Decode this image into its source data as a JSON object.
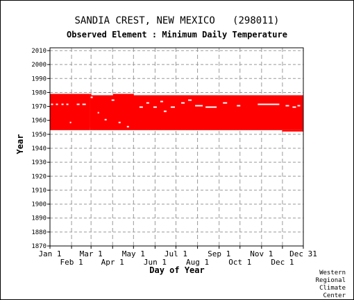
{
  "header": {
    "station": "SANDIA CREST, NEW MEXICO   (298011)",
    "element": "Observed Element : Minimum Daily Temperature"
  },
  "credit": [
    "Western",
    "Regional",
    "Climate",
    "Center"
  ],
  "chart_data": {
    "type": "heatmap",
    "title": "SANDIA CREST, NEW MEXICO   (298011)",
    "subtitle": "Observed Element : Minimum Daily Temperature",
    "xlabel": "Day of Year",
    "ylabel": "Year",
    "x_ticks_upper": [
      {
        "label": "Jan 1",
        "day": 1
      },
      {
        "label": "Mar 1",
        "day": 60
      },
      {
        "label": "May 1",
        "day": 121
      },
      {
        "label": "Jul 1",
        "day": 182
      },
      {
        "label": "Sep 1",
        "day": 244
      },
      {
        "label": "Nov 1",
        "day": 305
      },
      {
        "label": "Dec 31",
        "day": 365
      }
    ],
    "x_ticks_lower": [
      {
        "label": "Feb 1",
        "day": 32
      },
      {
        "label": "Apr 1",
        "day": 91
      },
      {
        "label": "Jun 1",
        "day": 152
      },
      {
        "label": "Aug 1",
        "day": 213
      },
      {
        "label": "Oct 1",
        "day": 274
      },
      {
        "label": "Dec 1",
        "day": 335
      }
    ],
    "y_ticks": [
      1870,
      1880,
      1890,
      1900,
      1910,
      1920,
      1930,
      1940,
      1950,
      1960,
      1970,
      1980,
      1990,
      2000,
      2010
    ],
    "xlim": [
      1,
      365
    ],
    "ylim": [
      1870,
      2012
    ],
    "grid": true,
    "series": [
      {
        "color": "#ff0000",
        "description_of_coverage": "records present",
        "blocks": [
          {
            "start_day": 1,
            "end_day": 58,
            "start_year": 1953,
            "end_year": 1978
          },
          {
            "start_day": 59,
            "end_day": 365,
            "start_year": 1953,
            "end_year": 1977
          },
          {
            "start_day": 59,
            "end_day": 60,
            "start_year": 1955,
            "end_year": 1978
          },
          {
            "start_day": 92,
            "end_day": 121,
            "start_year": 1977,
            "end_year": 1978
          },
          {
            "start_day": 335,
            "end_day": 365,
            "start_year": 1952,
            "end_year": 1952
          }
        ]
      }
    ],
    "missing_marks": [
      {
        "start_day": 300,
        "end_day": 330,
        "year": 1971
      },
      {
        "start_day": 3,
        "end_day": 5,
        "year": 1971
      },
      {
        "start_day": 10,
        "end_day": 12,
        "year": 1971
      },
      {
        "start_day": 18,
        "end_day": 20,
        "year": 1971
      },
      {
        "start_day": 25,
        "end_day": 27,
        "year": 1971
      },
      {
        "start_day": 40,
        "end_day": 43,
        "year": 1971
      },
      {
        "start_day": 48,
        "end_day": 52,
        "year": 1971
      },
      {
        "start_day": 130,
        "end_day": 134,
        "year": 1969
      },
      {
        "start_day": 140,
        "end_day": 143,
        "year": 1972
      },
      {
        "start_day": 150,
        "end_day": 154,
        "year": 1969
      },
      {
        "start_day": 160,
        "end_day": 163,
        "year": 1973
      },
      {
        "start_day": 175,
        "end_day": 180,
        "year": 1969
      },
      {
        "start_day": 190,
        "end_day": 194,
        "year": 1972
      },
      {
        "start_day": 200,
        "end_day": 204,
        "year": 1974
      },
      {
        "start_day": 210,
        "end_day": 220,
        "year": 1970
      },
      {
        "start_day": 225,
        "end_day": 240,
        "year": 1969
      },
      {
        "start_day": 250,
        "end_day": 255,
        "year": 1972
      },
      {
        "start_day": 270,
        "end_day": 274,
        "year": 1970
      },
      {
        "start_day": 340,
        "end_day": 344,
        "year": 1970
      },
      {
        "start_day": 350,
        "end_day": 354,
        "year": 1969
      },
      {
        "start_day": 357,
        "end_day": 360,
        "year": 1970
      },
      {
        "start_day": 80,
        "end_day": 82,
        "year": 1960
      },
      {
        "start_day": 100,
        "end_day": 102,
        "year": 1958
      },
      {
        "start_day": 112,
        "end_day": 114,
        "year": 1955
      },
      {
        "start_day": 30,
        "end_day": 31,
        "year": 1958
      },
      {
        "start_day": 60,
        "end_day": 62,
        "year": 1976
      },
      {
        "start_day": 70,
        "end_day": 71,
        "year": 1965
      },
      {
        "start_day": 90,
        "end_day": 93,
        "year": 1974
      },
      {
        "start_day": 165,
        "end_day": 168,
        "year": 1966
      }
    ]
  }
}
